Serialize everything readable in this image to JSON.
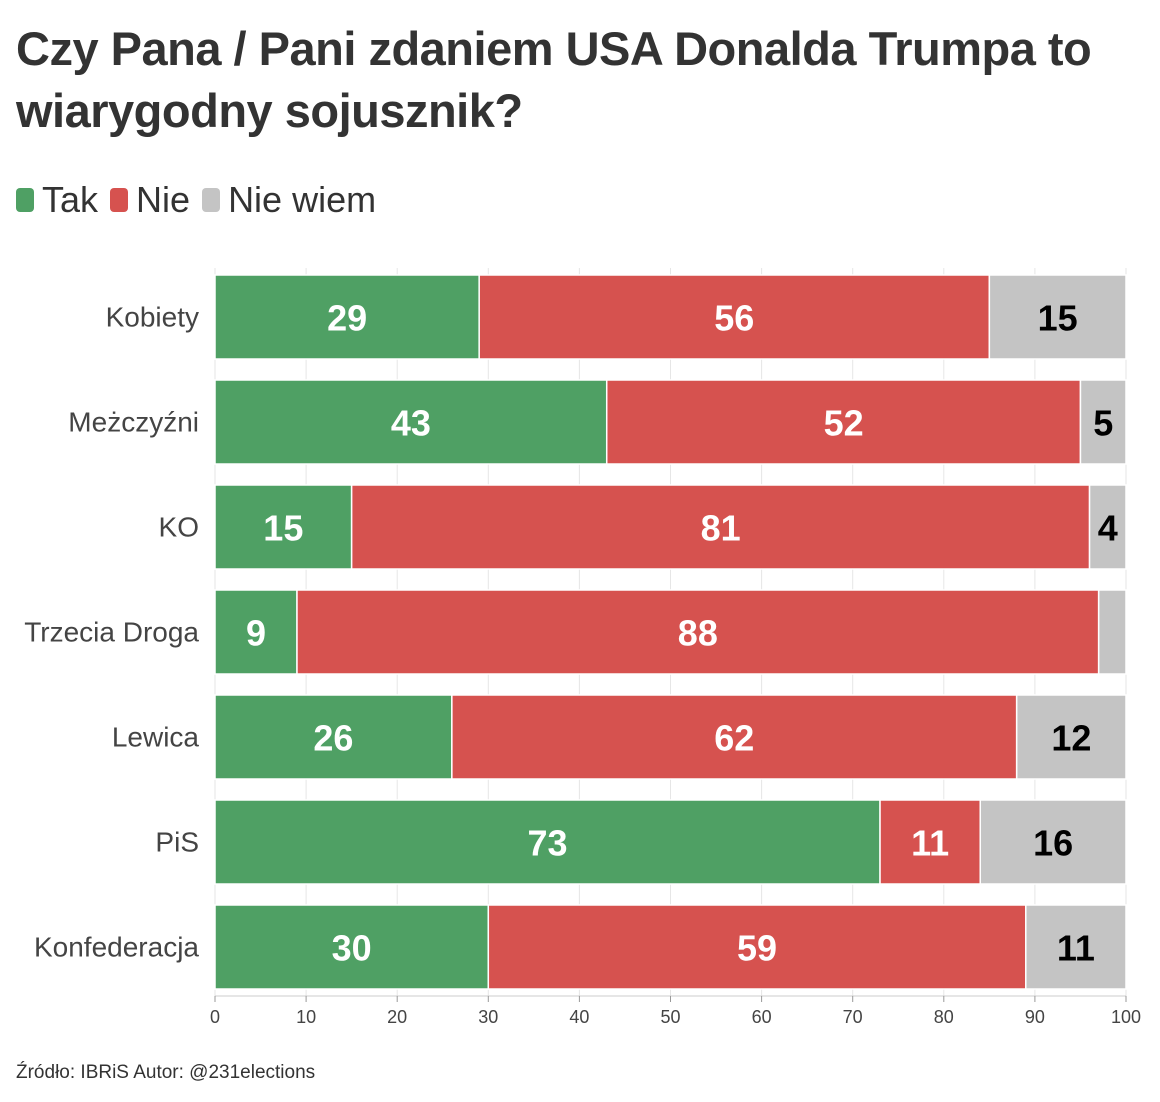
{
  "chart_data": {
    "type": "bar",
    "orientation": "horizontal",
    "stacked": true,
    "title": "Czy Pana / Pani zdaniem USA Donalda Trumpa to wiarygodny sojusznik?",
    "categories": [
      "Kobiety",
      "Meżczyźni",
      "KO",
      "Trzecia Droga",
      "Lewica",
      "PiS",
      "Konfederacja"
    ],
    "series": [
      {
        "name": "Tak",
        "color": "#4fa064",
        "label_color": "#ffffff",
        "values": [
          29,
          43,
          15,
          9,
          26,
          73,
          30
        ]
      },
      {
        "name": "Nie",
        "color": "#d6524f",
        "label_color": "#ffffff",
        "values": [
          56,
          52,
          81,
          88,
          62,
          11,
          59
        ]
      },
      {
        "name": "Nie wiem",
        "color": "#c4c4c4",
        "label_color": "#000000",
        "values": [
          15,
          5,
          4,
          3,
          12,
          16,
          11
        ]
      }
    ],
    "data_labels": [
      [
        "29",
        "43",
        "15",
        "9",
        "26",
        "73",
        "30"
      ],
      [
        "56",
        "52",
        "81",
        "88",
        "62",
        "11",
        "59"
      ],
      [
        "15",
        "5",
        "4",
        "",
        "12",
        "16",
        "11"
      ]
    ],
    "xlim": [
      0,
      100
    ],
    "xticks": [
      0,
      10,
      20,
      30,
      40,
      50,
      60,
      70,
      80,
      90,
      100
    ],
    "xlabel": "",
    "ylabel": "",
    "grid": true,
    "legend": "top-left",
    "source": "Źródło: IBRiS Autor: @231elections"
  }
}
